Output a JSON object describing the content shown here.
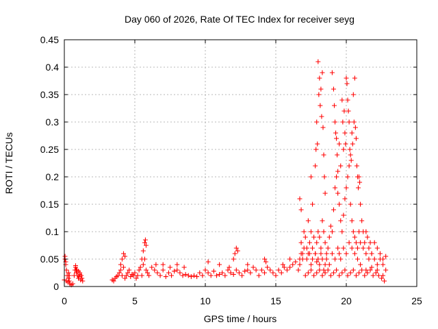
{
  "chart_data": {
    "type": "scatter",
    "title": "Day 060 of 2026, Rate Of TEC Index for receiver seyg",
    "xlabel": "GPS time / hours",
    "ylabel": "ROTI / TECUs",
    "xlim": [
      0,
      25
    ],
    "ylim": [
      0,
      0.45
    ],
    "xticks": [
      0,
      5,
      10,
      15,
      20,
      25
    ],
    "yticks": [
      0,
      0.05,
      0.1,
      0.15,
      0.2,
      0.25,
      0.3,
      0.35,
      0.4,
      0.45
    ],
    "xtick_labels": [
      "0",
      "5",
      "10",
      "15",
      "20",
      "25"
    ],
    "ytick_labels": [
      "0",
      "0.05",
      "0.1",
      "0.15",
      "0.2",
      "0.25",
      "0.3",
      "0.35",
      "0.4",
      "0.45"
    ],
    "grid": true,
    "marker": "+",
    "marker_color": "#ff0000",
    "legend": "none",
    "series": [
      {
        "x": [
          0.0,
          0.05,
          0.1,
          0.15,
          0.2,
          0.25,
          0.3,
          0.35,
          0.4,
          0.5,
          0.6,
          0.7,
          0.75,
          0.8,
          0.85,
          0.9,
          0.95,
          1.0,
          1.05,
          1.1,
          1.15,
          1.2,
          1.25,
          1.3,
          0.05,
          0.1,
          0.15,
          0.3,
          0.35,
          0.8,
          0.85,
          0.9,
          1.0,
          1.1,
          3.4,
          3.5,
          3.6,
          3.7,
          3.8,
          3.9,
          4.0,
          4.1,
          4.2,
          4.3,
          4.4,
          4.5,
          4.6,
          4.7,
          4.8,
          4.9,
          5.0,
          5.1,
          5.2,
          5.3,
          5.4,
          5.5,
          5.6,
          5.7,
          5.8,
          5.9,
          6.0,
          6.2,
          6.4,
          6.6,
          6.8,
          7.0,
          7.2,
          7.4,
          7.6,
          7.8,
          8.0,
          8.2,
          8.4,
          8.6,
          8.8,
          9.0,
          4.0,
          4.1,
          4.2,
          4.3,
          5.5,
          5.6,
          5.7,
          5.75,
          5.8,
          6.5,
          7.0,
          7.5,
          8.0,
          8.5,
          9.2,
          9.4,
          9.6,
          9.8,
          10.0,
          10.2,
          10.4,
          10.6,
          10.8,
          11.0,
          11.2,
          11.4,
          11.6,
          11.8,
          12.0,
          12.2,
          12.4,
          12.6,
          12.8,
          13.0,
          13.2,
          13.4,
          13.6,
          13.8,
          14.0,
          14.2,
          14.4,
          14.6,
          14.8,
          15.0,
          15.2,
          15.4,
          15.6,
          15.8,
          16.0,
          16.2,
          16.4,
          10.2,
          11.0,
          11.7,
          12.0,
          12.1,
          12.2,
          12.3,
          13.0,
          14.2,
          14.3,
          15.5,
          16.0,
          16.6,
          16.7,
          16.8,
          16.9,
          17.0,
          17.1,
          17.2,
          17.3,
          17.4,
          17.5,
          17.6,
          17.7,
          17.8,
          17.9,
          18.0,
          18.1,
          18.2,
          18.3,
          18.4,
          18.5,
          18.6,
          18.7,
          18.8,
          18.9,
          19.0,
          19.1,
          19.2,
          19.3,
          19.4,
          19.5,
          19.6,
          19.7,
          19.8,
          19.9,
          20.0,
          20.1,
          20.2,
          20.3,
          20.4,
          20.5,
          20.6,
          20.7,
          20.8,
          20.9,
          21.0,
          21.2,
          21.4,
          21.6,
          21.8,
          22.0,
          22.2,
          22.4,
          22.6,
          22.8,
          16.7,
          16.8,
          16.9,
          17.0,
          17.2,
          17.4,
          17.5,
          17.6,
          17.8,
          17.9,
          18.0,
          18.1,
          18.2,
          18.3,
          18.4,
          18.5,
          18.6,
          18.8,
          19.0,
          19.2,
          19.4,
          19.5,
          19.6,
          19.8,
          20.0,
          20.2,
          20.4,
          20.6,
          20.8,
          21.0,
          21.4,
          21.8,
          22.2,
          22.6,
          17.1,
          17.3,
          17.5,
          17.7,
          17.9,
          18.1,
          18.3,
          18.5,
          18.7,
          18.9,
          19.1,
          19.3,
          19.5,
          19.7,
          19.9,
          20.1,
          20.3,
          20.5,
          20.7,
          20.9,
          21.1,
          21.3,
          21.5,
          21.7,
          21.9,
          22.1,
          22.3,
          22.5,
          22.7,
          16.7,
          16.8,
          17.3,
          17.5,
          17.6,
          17.8,
          17.85,
          17.9,
          17.95,
          18.0,
          18.05,
          18.1,
          18.15,
          18.2,
          18.25,
          18.3,
          18.35,
          18.4,
          18.45,
          18.5,
          19.0,
          19.1,
          19.15,
          19.2,
          19.25,
          19.3,
          19.35,
          19.4,
          19.5,
          19.6,
          19.7,
          19.75,
          19.8,
          19.85,
          19.9,
          19.95,
          20.0,
          20.05,
          20.1,
          20.15,
          20.2,
          20.25,
          20.3,
          20.35,
          20.4,
          20.45,
          20.5,
          20.55,
          20.6,
          20.65,
          20.7,
          20.75,
          20.8,
          20.85,
          20.9,
          20.95,
          21.0,
          21.1,
          21.2,
          21.3,
          21.4,
          21.5,
          21.6,
          21.7,
          21.8,
          22.0,
          22.2,
          22.4,
          22.6,
          22.8
        ],
        "y": [
          0.012,
          0.05,
          0.045,
          0.01,
          0.02,
          0.008,
          0.015,
          0.01,
          0.005,
          0.003,
          0.005,
          0.02,
          0.03,
          0.035,
          0.025,
          0.028,
          0.02,
          0.015,
          0.018,
          0.025,
          0.012,
          0.02,
          0.015,
          0.01,
          0.055,
          0.04,
          0.03,
          0.025,
          0.02,
          0.038,
          0.03,
          0.03,
          0.028,
          0.022,
          0.012,
          0.01,
          0.015,
          0.018,
          0.02,
          0.025,
          0.03,
          0.02,
          0.035,
          0.015,
          0.02,
          0.025,
          0.03,
          0.018,
          0.022,
          0.02,
          0.025,
          0.015,
          0.02,
          0.03,
          0.035,
          0.02,
          0.04,
          0.05,
          0.03,
          0.025,
          0.02,
          0.035,
          0.03,
          0.025,
          0.02,
          0.03,
          0.018,
          0.025,
          0.02,
          0.028,
          0.03,
          0.025,
          0.02,
          0.022,
          0.02,
          0.018,
          0.04,
          0.05,
          0.06,
          0.055,
          0.05,
          0.065,
          0.08,
          0.085,
          0.075,
          0.04,
          0.04,
          0.035,
          0.04,
          0.035,
          0.02,
          0.018,
          0.025,
          0.02,
          0.03,
          0.025,
          0.02,
          0.028,
          0.02,
          0.022,
          0.025,
          0.02,
          0.03,
          0.025,
          0.022,
          0.03,
          0.025,
          0.02,
          0.028,
          0.03,
          0.025,
          0.035,
          0.03,
          0.02,
          0.03,
          0.025,
          0.035,
          0.03,
          0.025,
          0.02,
          0.03,
          0.025,
          0.035,
          0.03,
          0.035,
          0.04,
          0.045,
          0.045,
          0.04,
          0.035,
          0.05,
          0.06,
          0.07,
          0.065,
          0.04,
          0.05,
          0.045,
          0.04,
          0.05,
          0.03,
          0.05,
          0.08,
          0.06,
          0.1,
          0.09,
          0.07,
          0.06,
          0.08,
          0.1,
          0.07,
          0.09,
          0.06,
          0.08,
          0.1,
          0.09,
          0.07,
          0.12,
          0.1,
          0.08,
          0.06,
          0.07,
          0.09,
          0.11,
          0.1,
          0.14,
          0.18,
          0.2,
          0.17,
          0.15,
          0.12,
          0.1,
          0.13,
          0.16,
          0.18,
          0.2,
          0.22,
          0.15,
          0.12,
          0.1,
          0.09,
          0.08,
          0.07,
          0.1,
          0.08,
          0.07,
          0.06,
          0.05,
          0.06,
          0.05,
          0.04,
          0.05,
          0.04,
          0.03,
          0.04,
          0.06,
          0.05,
          0.07,
          0.05,
          0.06,
          0.04,
          0.05,
          0.06,
          0.045,
          0.05,
          0.04,
          0.06,
          0.05,
          0.03,
          0.04,
          0.05,
          0.04,
          0.06,
          0.05,
          0.07,
          0.06,
          0.05,
          0.07,
          0.06,
          0.08,
          0.07,
          0.06,
          0.05,
          0.04,
          0.03,
          0.035,
          0.03,
          0.02,
          0.02,
          0.025,
          0.03,
          0.02,
          0.025,
          0.03,
          0.02,
          0.025,
          0.03,
          0.02,
          0.025,
          0.03,
          0.02,
          0.025,
          0.03,
          0.02,
          0.025,
          0.03,
          0.02,
          0.025,
          0.03,
          0.02,
          0.025,
          0.03,
          0.02,
          0.025,
          0.02,
          0.015,
          0.01,
          0.16,
          0.14,
          0.12,
          0.2,
          0.15,
          0.22,
          0.25,
          0.3,
          0.26,
          0.41,
          0.35,
          0.38,
          0.33,
          0.36,
          0.31,
          0.39,
          0.29,
          0.24,
          0.2,
          0.17,
          0.39,
          0.36,
          0.33,
          0.3,
          0.28,
          0.27,
          0.24,
          0.21,
          0.26,
          0.22,
          0.34,
          0.3,
          0.25,
          0.32,
          0.28,
          0.26,
          0.38,
          0.37,
          0.34,
          0.32,
          0.3,
          0.25,
          0.24,
          0.23,
          0.28,
          0.26,
          0.35,
          0.3,
          0.38,
          0.29,
          0.27,
          0.22,
          0.2,
          0.18,
          0.2,
          0.19,
          0.15,
          0.12,
          0.1,
          0.08,
          0.1,
          0.09,
          0.07,
          0.08,
          0.06,
          0.08,
          0.07,
          0.06,
          0.05,
          0.055
        ],
        "count_note": ""
      }
    ]
  }
}
